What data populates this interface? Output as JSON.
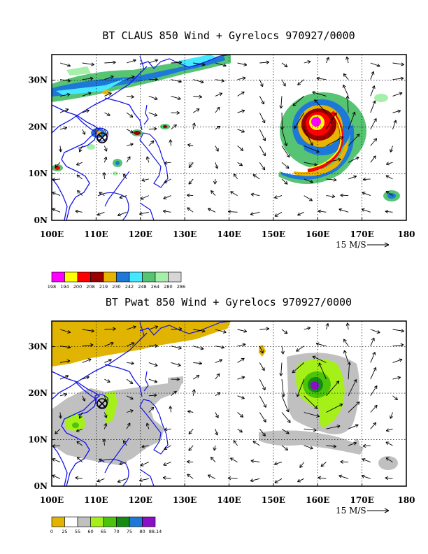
{
  "panels": [
    {
      "id": "claus",
      "title": "BT CLAUS 850 Wind + Gyrelocs 970927/0000",
      "colorbar_labels": [
        "198",
        "194",
        "200",
        "208",
        "219",
        "230",
        "242",
        "248",
        "264",
        "280",
        "286"
      ],
      "colorbar_colors": [
        "#ff00ff",
        "#ffff00",
        "#ff0000",
        "#990000",
        "#e8b400",
        "#1e78d8",
        "#44e8ff",
        "#56c472",
        "#a6efa8",
        "#d6d6d6"
      ]
    },
    {
      "id": "pwat",
      "title": "BT Pwat 850 Wind + Gyrelocs 970927/0000",
      "colorbar_labels": [
        "0",
        "25",
        "55",
        "60",
        "65",
        "70",
        "75",
        "80",
        "88.14"
      ],
      "colorbar_colors": [
        "#e0b400",
        "#ffffff",
        "#c0c0c0",
        "#a6f01a",
        "#4cc40a",
        "#148c14",
        "#1e78d8",
        "#8a10c8"
      ]
    }
  ],
  "map": {
    "lon_labels": [
      "100E",
      "110E",
      "120E",
      "130E",
      "140E",
      "150E",
      "160E",
      "170E",
      "180"
    ],
    "lat_labels": [
      "0N",
      "10N",
      "20N",
      "30N"
    ],
    "lon_range": [
      100,
      180
    ],
    "lat_range": [
      0,
      35.5
    ],
    "grid": "dotted"
  },
  "wind_scale": {
    "label": "15 M/S"
  },
  "colors": {
    "coast": "#1414e6",
    "arrow": "#000000",
    "grid": "#000000"
  }
}
